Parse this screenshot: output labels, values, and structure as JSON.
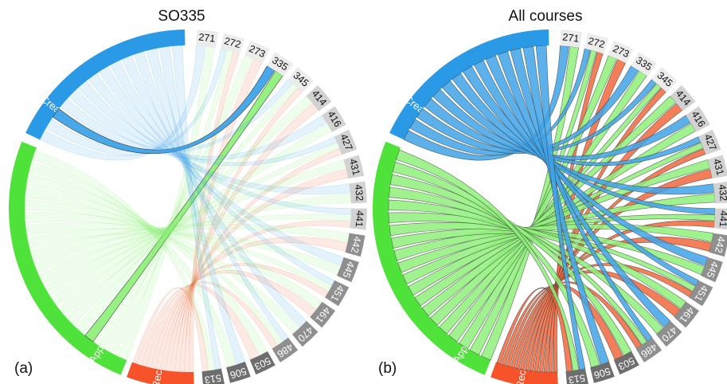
{
  "panels": [
    {
      "id": "a",
      "title": "SO335",
      "letter": "(a)",
      "highlight": "335",
      "dim_opacity": 0.14
    },
    {
      "id": "b",
      "title": "All courses",
      "letter": "(b)",
      "highlight": null,
      "dim_opacity": 0.85
    }
  ],
  "taxonomy": [
    {
      "label": "Create",
      "color": "#2b9ae6"
    },
    {
      "label": "Apply",
      "color": "#4fe23a"
    },
    {
      "label": "Recall",
      "color": "#f7532b"
    }
  ],
  "courses": [
    "271",
    "272",
    "273",
    "335",
    "345",
    "414",
    "416",
    "427",
    "431",
    "432",
    "441",
    "442",
    "445",
    "451",
    "461",
    "470",
    "486",
    "503",
    "506",
    "513"
  ],
  "course_box_colors": {
    "light": "#ececec",
    "mid": "#d2d2d2",
    "dark": "#8f8f8f",
    "darker": "#6e6e6e"
  },
  "chord_colors": {
    "Create": "#3fa3e8",
    "Apply": "#8ff07a",
    "Recall": "#f0673d"
  }
}
